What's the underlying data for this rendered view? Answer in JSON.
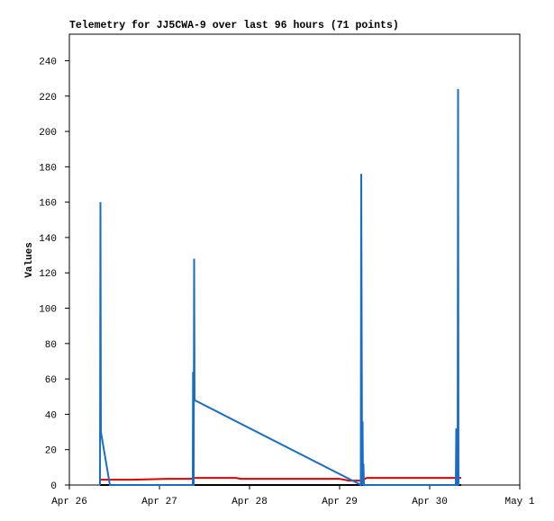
{
  "chart_data": {
    "type": "line",
    "title": "Telemetry for JJ5CWA-9 over last 96 hours (71 points)",
    "y_label": "Values",
    "xlim": [
      0,
      5
    ],
    "ylim": [
      0,
      255
    ],
    "xticks": [
      {
        "value": 0,
        "label": "Apr 26"
      },
      {
        "value": 1,
        "label": "Apr 27"
      },
      {
        "value": 2,
        "label": "Apr 28"
      },
      {
        "value": 3,
        "label": "Apr 29"
      },
      {
        "value": 4,
        "label": "Apr 30"
      },
      {
        "value": 5,
        "label": "May 1"
      }
    ],
    "yticks": [
      0,
      20,
      40,
      60,
      80,
      100,
      120,
      140,
      160,
      180,
      200,
      220,
      240
    ],
    "series": [
      {
        "color": "#000000",
        "x": [
          0.34,
          4.35
        ],
        "values": [
          0,
          0
        ]
      },
      {
        "color": "#e00000",
        "x": [
          0.34,
          0.36,
          0.7,
          1.1,
          1.35,
          1.4,
          1.85,
          1.9,
          2.5,
          3.0,
          3.1,
          3.25,
          3.3,
          3.8,
          4.35
        ],
        "values": [
          3,
          3,
          3,
          3.5,
          3.5,
          4,
          4,
          3.5,
          3.5,
          3.5,
          2.5,
          2.5,
          4,
          4,
          4
        ]
      },
      {
        "color": "#1a6dc7",
        "x": [
          0.34,
          0.345,
          0.35,
          0.45,
          1.37,
          1.373,
          1.376,
          1.38,
          1.385,
          1.39,
          3.2,
          3.235,
          3.24,
          3.25,
          3.255,
          3.26,
          3.265,
          3.27,
          4.29,
          4.295,
          4.3,
          4.31,
          4.315,
          4.32
        ],
        "values": [
          0,
          160,
          30,
          0,
          0,
          64,
          0,
          0,
          128,
          48,
          1,
          0,
          176,
          0,
          36,
          0,
          12,
          0,
          0,
          32,
          0,
          0,
          224,
          0
        ]
      }
    ]
  }
}
